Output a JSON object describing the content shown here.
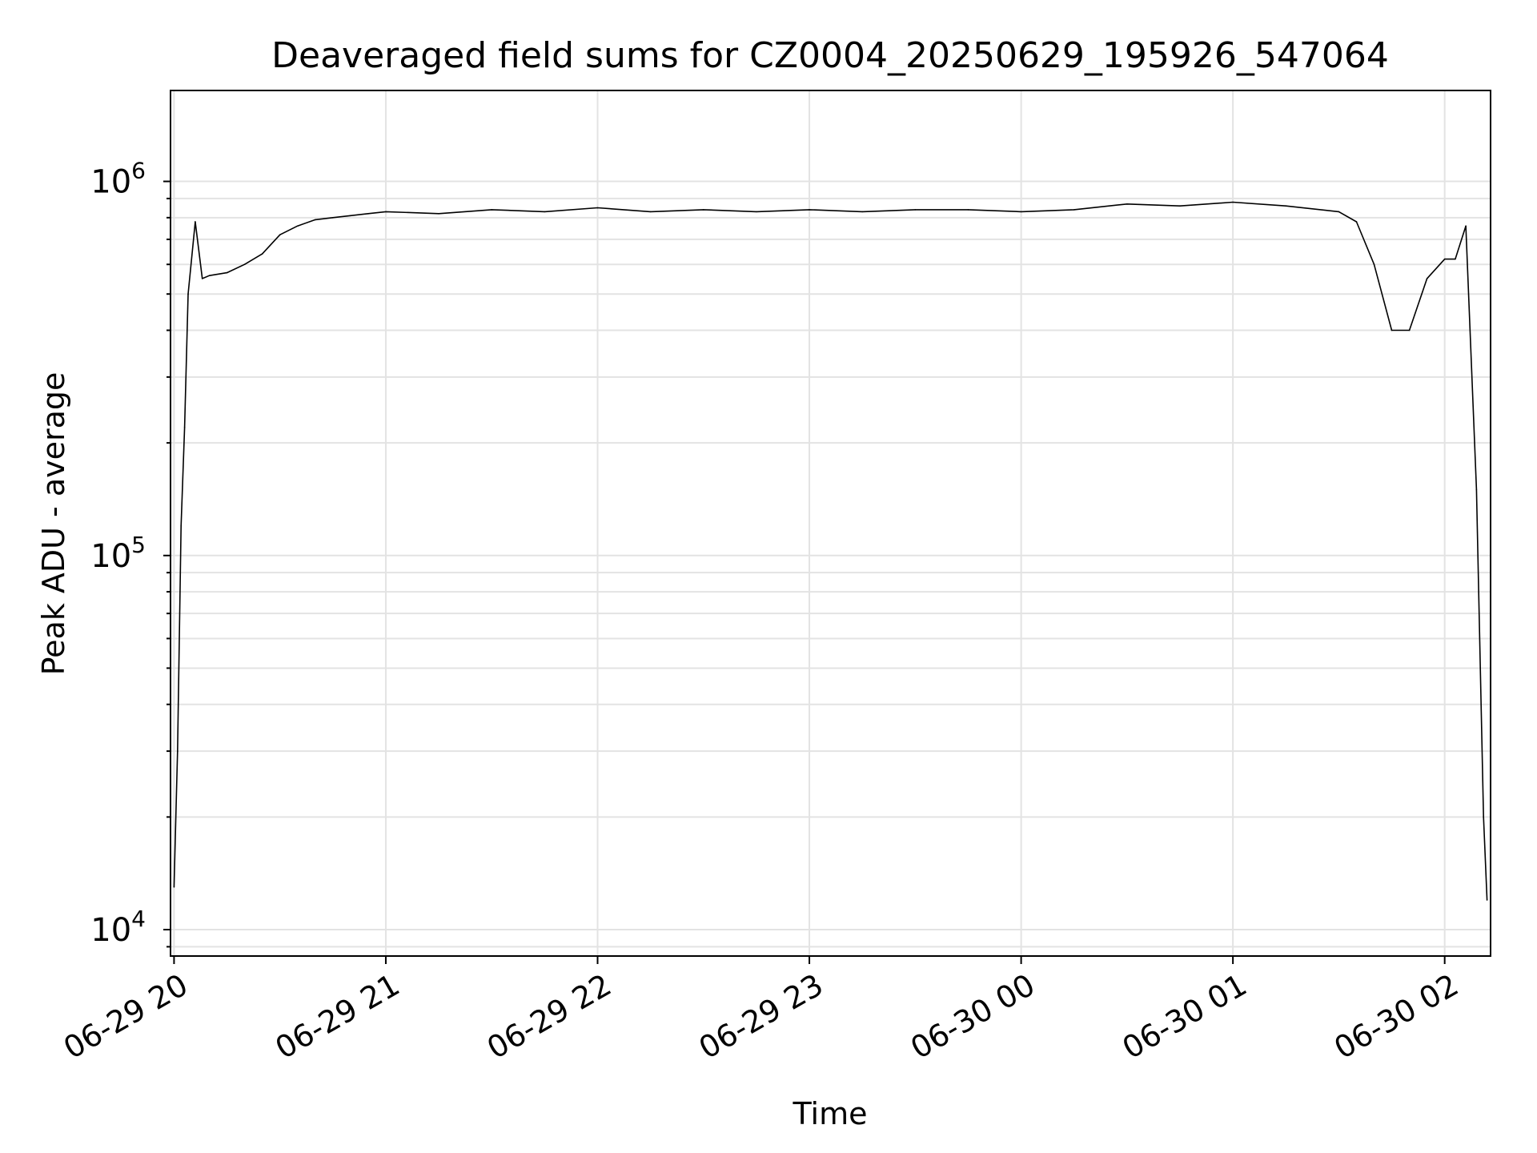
{
  "chart_data": {
    "type": "line",
    "title": "Deaveraged field sums for CZ0004_20250629_195926_547064",
    "xlabel": "Time",
    "ylabel": "Peak ADU - average",
    "xscale": "time",
    "yscale": "log",
    "xlim": [
      "06-29 19:59",
      "06-30 02:13"
    ],
    "ylim": [
      8500,
      1750000
    ],
    "grid": true,
    "legend": "none",
    "line_color": "#000000",
    "x_ticks": [
      "06-29 20",
      "06-29 21",
      "06-29 22",
      "06-29 23",
      "06-30 00",
      "06-30 01",
      "06-30 02"
    ],
    "y_ticks": [
      {
        "base": "10",
        "exp": "4",
        "value": 10000
      },
      {
        "base": "10",
        "exp": "5",
        "value": 100000
      },
      {
        "base": "10",
        "exp": "6",
        "value": 1000000
      }
    ],
    "series": [
      {
        "x": [
          "06-29 20:00",
          "06-29 20:01",
          "06-29 20:02",
          "06-29 20:03",
          "06-29 20:04",
          "06-29 20:06",
          "06-29 20:08",
          "06-29 20:10",
          "06-29 20:15",
          "06-29 20:20",
          "06-29 20:25",
          "06-29 20:30",
          "06-29 20:35",
          "06-29 20:40",
          "06-29 20:45",
          "06-29 20:50",
          "06-29 20:55",
          "06-29 21:00",
          "06-29 21:15",
          "06-29 21:30",
          "06-29 21:45",
          "06-29 22:00",
          "06-29 22:15",
          "06-29 22:30",
          "06-29 22:45",
          "06-29 23:00",
          "06-29 23:15",
          "06-29 23:30",
          "06-29 23:45",
          "06-30 00:00",
          "06-30 00:15",
          "06-30 00:30",
          "06-30 00:45",
          "06-30 01:00",
          "06-30 01:15",
          "06-30 01:30",
          "06-30 01:35",
          "06-30 01:40",
          "06-30 01:45",
          "06-30 01:50",
          "06-30 01:55",
          "06-30 02:00",
          "06-30 02:03",
          "06-30 02:06",
          "06-30 02:09",
          "06-30 02:11",
          "06-30 02:12"
        ],
        "y": [
          13000,
          30000,
          120000,
          220000,
          500000,
          780000,
          550000,
          560000,
          570000,
          600000,
          640000,
          720000,
          760000,
          790000,
          800000,
          810000,
          820000,
          830000,
          820000,
          840000,
          830000,
          850000,
          830000,
          840000,
          830000,
          840000,
          830000,
          840000,
          840000,
          830000,
          840000,
          870000,
          860000,
          880000,
          860000,
          830000,
          780000,
          600000,
          400000,
          400000,
          550000,
          620000,
          620000,
          760000,
          150000,
          20000,
          12000
        ]
      }
    ]
  }
}
